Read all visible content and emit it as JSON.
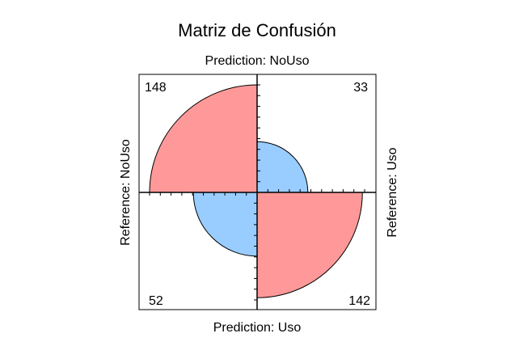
{
  "chart_data": {
    "type": "fourfold",
    "title": "Matriz de Confusión",
    "top_label": "Prediction: NoUso",
    "bottom_label": "Prediction: Uso",
    "left_label": "Reference: NoUso",
    "right_label": "Reference: Uso",
    "cells": [
      {
        "quadrant": "top-left",
        "prediction": "NoUso",
        "reference": "NoUso",
        "value": 148,
        "label": "148",
        "color": "#ff9999"
      },
      {
        "quadrant": "top-right",
        "prediction": "NoUso",
        "reference": "Uso",
        "value": 33,
        "label": "33",
        "color": "#99ccff"
      },
      {
        "quadrant": "bottom-left",
        "prediction": "Uso",
        "reference": "NoUso",
        "value": 52,
        "label": "52",
        "color": "#99ccff"
      },
      {
        "quadrant": "bottom-right",
        "prediction": "Uso",
        "reference": "Uso",
        "value": 142,
        "label": "142",
        "color": "#ff9999"
      }
    ]
  }
}
